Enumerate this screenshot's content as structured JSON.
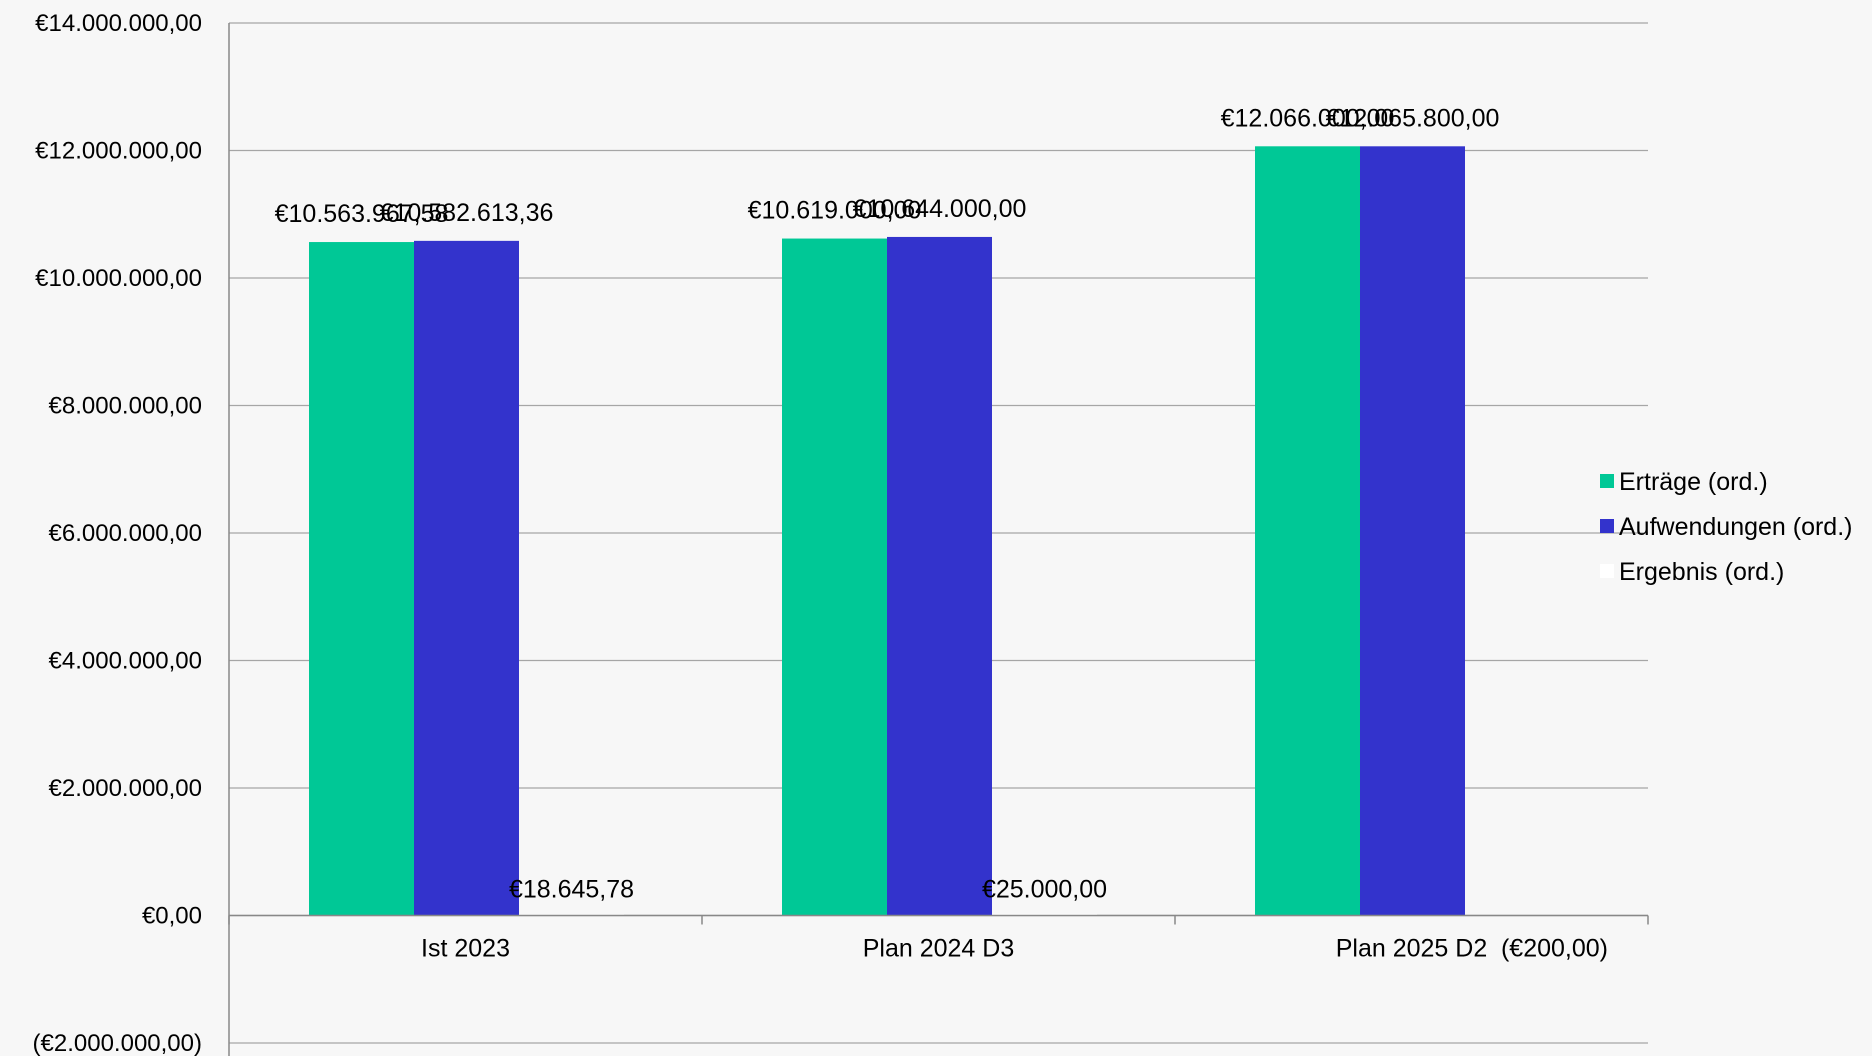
{
  "chart_data": {
    "type": "bar",
    "title": "",
    "xlabel": "",
    "ylabel": "",
    "categories": [
      "Ist 2023",
      "Plan 2024 D3",
      "Plan 2025 D2"
    ],
    "ylim": [
      -2000000,
      14000000
    ],
    "yticks": [
      -2000000,
      0,
      2000000,
      4000000,
      6000000,
      8000000,
      10000000,
      12000000,
      14000000
    ],
    "ytick_labels": [
      "(€2.000.000,00)",
      "€0,00",
      "€2.000.000,00",
      "€4.000.000,00",
      "€6.000.000,00",
      "€8.000.000,00",
      "€10.000.000,00",
      "€12.000.000,00",
      "€14.000.000,00"
    ],
    "grid": true,
    "legend_position": "right",
    "series": [
      {
        "name": "Erträge (ord.)",
        "color": "#00c896",
        "values": [
          10563967.58,
          10619000.0,
          12066000.0
        ],
        "labels": [
          "€10.563.967,58",
          "€10.619.000,00",
          "€12.066.000,00"
        ]
      },
      {
        "name": "Aufwendungen (ord.)",
        "color": "#3333cc",
        "values": [
          10582613.36,
          10644000.0,
          12065800.0
        ],
        "labels": [
          "€10.582.613,36",
          "€10.644.000,00",
          "€12.065.800,00"
        ]
      },
      {
        "name": "Ergebnis (ord.)",
        "color": "#ffffff",
        "values": [
          18645.78,
          25000.0,
          -200.0
        ],
        "labels": [
          "€18.645,78",
          "€25.000,00",
          "(€200,00)"
        ]
      }
    ]
  }
}
